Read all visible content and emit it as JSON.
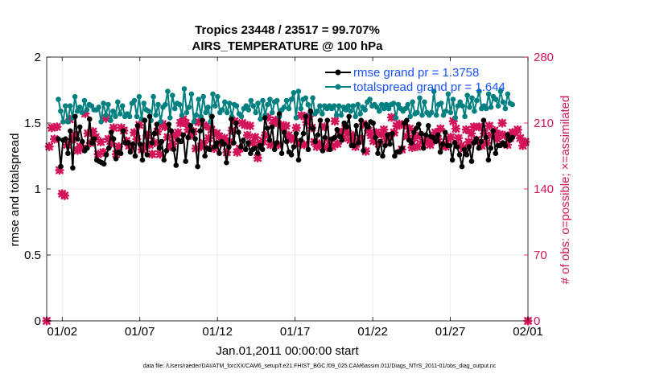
{
  "chart_data": {
    "type": "line",
    "title_line1": "Tropics 23448 / 23517 = 99.707%",
    "title_line2": "AIRS_TEMPERATURE @ 100 hPa",
    "xlabel": "Jan.01,2011 00:00:00 start",
    "ylabel_left": "rmse and totalspread",
    "ylabel_right": "# of obs: o=possible; ×=assimilated",
    "x_ticks": [
      "01/02",
      "01/07",
      "01/12",
      "01/17",
      "01/22",
      "01/27",
      "02/01"
    ],
    "y_ticks_left": [
      "0",
      "0.5",
      "1",
      "1.5",
      "2"
    ],
    "y_ticks_right": [
      "0",
      "70",
      "140",
      "210",
      "280"
    ],
    "ylim_left": [
      0,
      2
    ],
    "ylim_right": [
      0,
      280
    ],
    "xlim_days": [
      0,
      31
    ],
    "legend": [
      "rmse grand pr = 1.3758",
      "totalspread grand pr = 1.644"
    ],
    "colors": {
      "rmse": "#000000",
      "totalspread": "#008080",
      "obs": "#d4145a",
      "legend_text": "#1a53ff"
    },
    "footer": "data file: /Users/raeder/DAI/ATM_forcXX/CAM6_setup/f.e21.FHIST_BGC.f09_025.CAM6assim.011/Diags_NTrS_2011-01/obs_diag_output.nc",
    "series": [
      {
        "name": "rmse",
        "values": [
          1.38,
          1.17,
          1.37,
          1.38,
          1.27,
          1.44,
          1.16,
          1.55,
          1.38,
          1.47,
          1.36,
          1.29,
          1.31,
          1.53,
          1.35,
          1.38,
          1.22,
          1.21,
          1.2,
          1.19,
          1.26,
          1.31,
          1.43,
          1.38,
          1.23,
          1.28,
          1.27,
          1.44,
          1.35,
          1.35,
          1.28,
          1.34,
          1.25,
          1.48,
          1.34,
          1.22,
          1.52,
          1.26,
          1.55,
          1.35,
          1.42,
          1.49,
          1.31,
          1.36,
          1.22,
          1.29,
          1.49,
          1.44,
          1.3,
          1.18,
          1.37,
          1.36,
          1.41,
          1.21,
          1.39,
          1.48,
          1.44,
          1.38,
          1.17,
          1.44,
          1.52,
          1.25,
          1.31,
          1.3,
          1.55,
          1.32,
          1.35,
          1.27,
          1.36,
          1.34,
          1.2,
          1.32,
          1.53,
          1.35,
          1.5,
          1.43,
          1.32,
          1.37,
          1.3,
          1.35,
          1.27,
          1.3,
          1.31,
          1.27,
          1.33,
          1.3,
          1.54,
          1.46,
          1.37,
          1.47,
          1.3,
          1.35,
          1.57,
          1.27,
          1.43,
          1.36,
          1.28,
          1.26,
          1.32,
          1.42,
          1.22,
          1.37,
          1.42,
          1.55,
          1.3,
          1.59,
          1.46,
          1.36,
          1.41,
          1.52,
          1.29,
          1.39,
          1.52,
          1.3,
          1.38,
          1.39,
          1.45,
          1.4,
          1.37,
          1.5,
          1.47,
          1.55,
          1.33,
          1.33,
          1.48,
          1.35,
          1.52,
          1.29,
          1.49,
          1.47,
          1.51,
          1.5,
          1.39,
          1.27,
          1.36,
          1.25,
          1.33,
          1.41,
          1.34,
          1.42,
          1.25,
          1.28,
          1.28,
          1.31,
          1.5,
          1.52,
          1.37,
          1.35,
          1.43,
          1.46,
          1.49,
          1.42,
          1.31,
          1.41,
          1.48,
          1.4,
          1.39,
          1.36,
          1.41,
          1.28,
          1.34,
          1.43,
          1.33,
          1.33,
          1.22,
          1.35,
          1.32,
          1.26,
          1.17,
          1.3,
          1.26,
          1.32,
          1.21,
          1.35,
          1.38,
          1.31,
          1.36,
          1.52,
          1.39,
          1.22,
          1.31,
          1.44,
          1.27,
          1.33,
          1.33,
          1.35,
          1.33,
          1.41,
          1.37,
          1.39
        ]
      },
      {
        "name": "totalspread",
        "values": [
          1.68,
          1.59,
          1.51,
          1.63,
          1.51,
          1.63,
          1.54,
          1.7,
          1.59,
          1.62,
          1.58,
          1.67,
          1.6,
          1.64,
          1.63,
          1.6,
          1.6,
          1.62,
          1.51,
          1.65,
          1.56,
          1.64,
          1.52,
          1.59,
          1.55,
          1.66,
          1.57,
          1.63,
          1.55,
          1.57,
          1.55,
          1.65,
          1.67,
          1.55,
          1.7,
          1.53,
          1.65,
          1.6,
          1.59,
          1.52,
          1.7,
          1.56,
          1.64,
          1.51,
          1.62,
          1.64,
          1.74,
          1.54,
          1.71,
          1.61,
          1.65,
          1.64,
          1.56,
          1.76,
          1.58,
          1.62,
          1.72,
          1.51,
          1.56,
          1.68,
          1.55,
          1.7,
          1.58,
          1.62,
          1.51,
          1.72,
          1.63,
          1.7,
          1.58,
          1.6,
          1.66,
          1.58,
          1.65,
          1.55,
          1.64,
          1.63,
          1.57,
          1.55,
          1.61,
          1.63,
          1.6,
          1.67,
          1.63,
          1.58,
          1.65,
          1.53,
          1.67,
          1.56,
          1.64,
          1.68,
          1.58,
          1.66,
          1.67,
          1.55,
          1.6,
          1.62,
          1.67,
          1.61,
          1.68,
          1.73,
          1.54,
          1.74,
          1.61,
          1.68,
          1.69,
          1.64,
          1.58,
          1.69,
          1.57,
          1.59,
          1.63,
          1.57,
          1.63,
          1.61,
          1.63,
          1.61,
          1.63,
          1.56,
          1.63,
          1.56,
          1.62,
          1.6,
          1.63,
          1.59,
          1.63,
          1.55,
          1.64,
          1.57,
          1.62,
          1.6,
          1.66,
          1.68,
          1.63,
          1.64,
          1.62,
          1.59,
          1.64,
          1.61,
          1.64,
          1.61,
          1.64,
          1.65,
          1.54,
          1.64,
          1.61,
          1.59,
          1.61,
          1.64,
          1.55,
          1.66,
          1.57,
          1.58,
          1.69,
          1.56,
          1.66,
          1.58,
          1.56,
          1.58,
          1.74,
          1.56,
          1.64,
          1.65,
          1.56,
          1.59,
          1.72,
          1.58,
          1.68,
          1.54,
          1.63,
          1.66,
          1.63,
          1.55,
          1.71,
          1.62,
          1.69,
          1.59,
          1.67,
          1.74,
          1.61,
          1.63,
          1.61,
          1.72,
          1.62,
          1.7,
          1.68,
          1.63,
          1.74,
          1.66,
          1.61,
          1.72,
          1.65,
          1.64
        ]
      },
      {
        "name": "obs_assimilated",
        "values": [
          0,
          185,
          205,
          193,
          206,
          160,
          135,
          133,
          187,
          214,
          193,
          197,
          181,
          185,
          183,
          220,
          199,
          189,
          201,
          195,
          177,
          190,
          179,
          215,
          193,
          188,
          205,
          177,
          185,
          205,
          202,
          191,
          186,
          184,
          200,
          193,
          208,
          182,
          185,
          197,
          187,
          177,
          189,
          201,
          177,
          209,
          206,
          195,
          185,
          188,
          196,
          200,
          210,
          214,
          210,
          203,
          197,
          201,
          183,
          211,
          185,
          189,
          207,
          194,
          203,
          183,
          199,
          196,
          189,
          194,
          179,
          190,
          202,
          212,
          179,
          183,
          210,
          208,
          197,
          207,
          189,
          195,
          173,
          187,
          191,
          197,
          216,
          187,
          210,
          213,
          187,
          208,
          205,
          207,
          197,
          193,
          193,
          205,
          189,
          218,
          187,
          211,
          217,
          205,
          190,
          185,
          188,
          186,
          206,
          184,
          191,
          185,
          212,
          188,
          200,
          194,
          204,
          199,
          192,
          197,
          185,
          191,
          193,
          209,
          180,
          202,
          197,
          191,
          200,
          188,
          198,
          203,
          193,
          196,
          216,
          200,
          207,
          209,
          182,
          208,
          196,
          204,
          184,
          194,
          185,
          197,
          190,
          189,
          191,
          187,
          192,
          200,
          193,
          204,
          187,
          185,
          193,
          195,
          212,
          204,
          194,
          186,
          183,
          203,
          190,
          199,
          206,
          192,
          206,
          186,
          199,
          189,
          207,
          197,
          202,
          193,
          198,
          210,
          197,
          187,
          194,
          200,
          200,
          203,
          194,
          186,
          190,
          0
        ]
      }
    ]
  }
}
